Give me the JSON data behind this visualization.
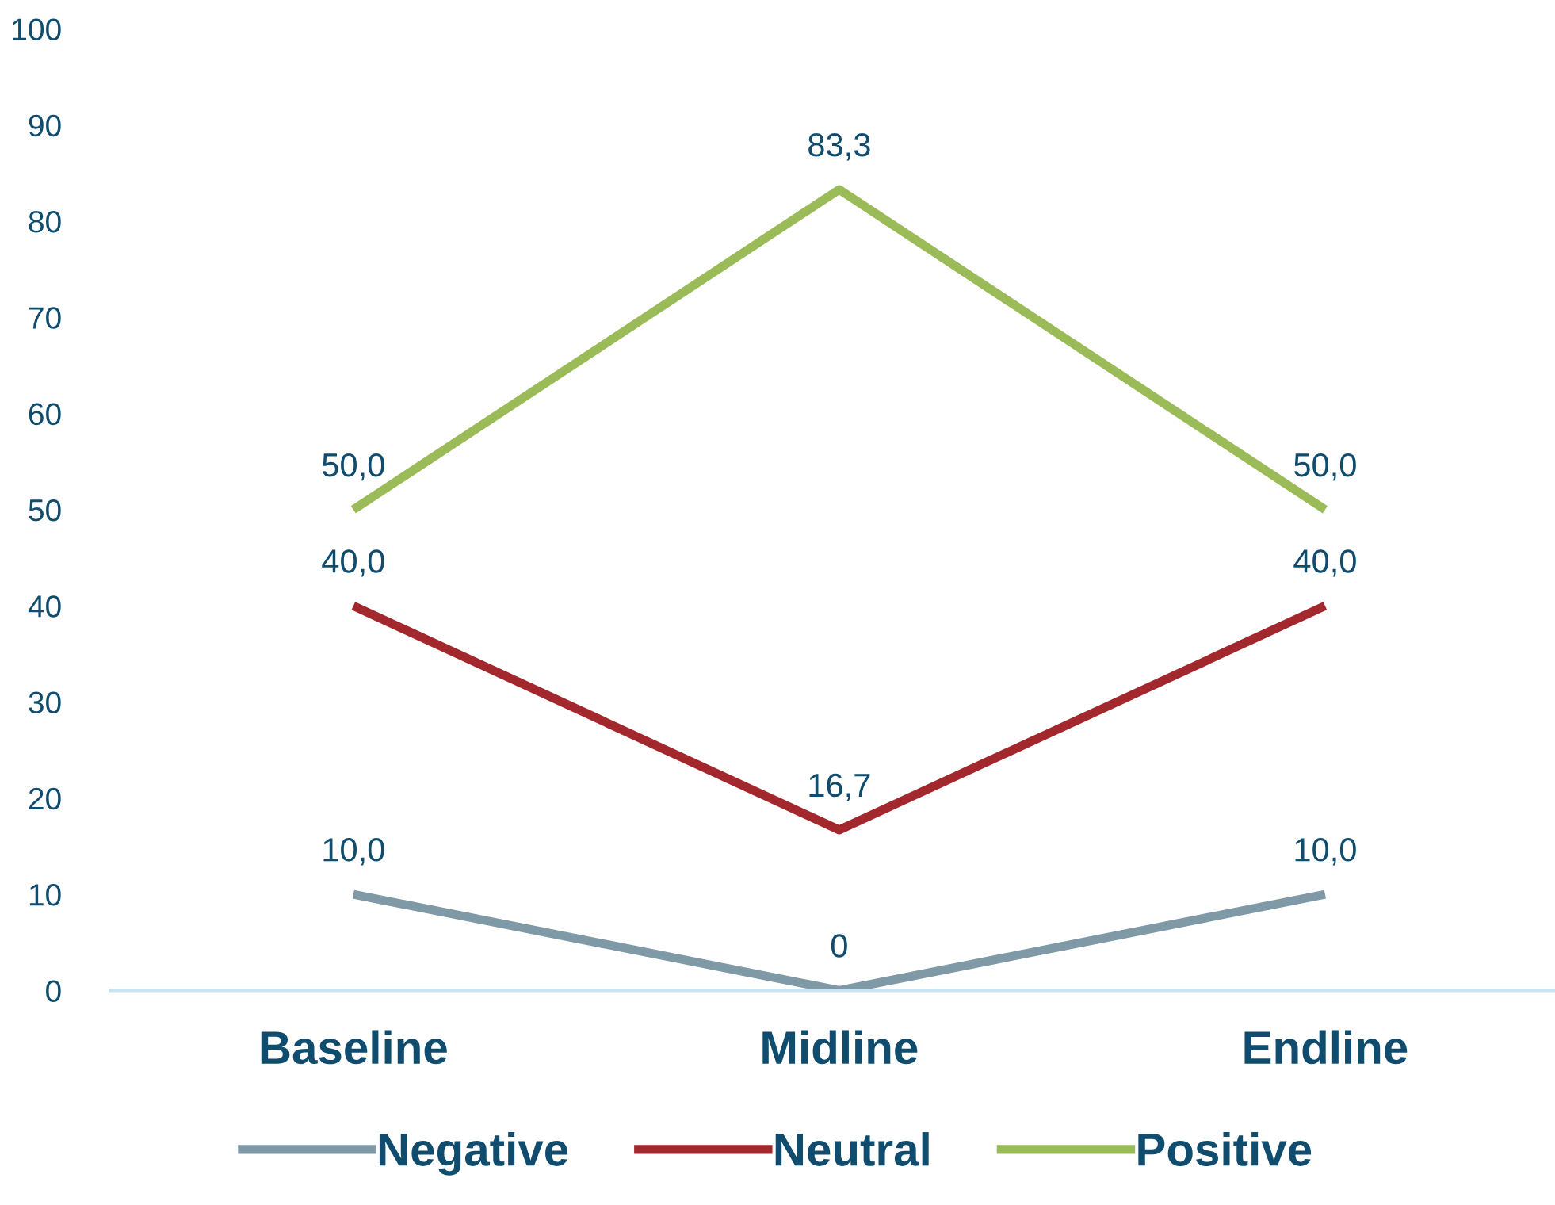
{
  "chart_data": {
    "type": "line",
    "categories": [
      "Baseline",
      "Midline",
      "Endline"
    ],
    "series": [
      {
        "name": "Negative",
        "color": "#7f9aa6",
        "values": [
          10,
          0,
          10
        ],
        "value_labels": [
          "10,0",
          "0",
          "10,0"
        ]
      },
      {
        "name": "Neutral",
        "color": "#a3282e",
        "values": [
          40,
          16.7,
          40
        ],
        "value_labels": [
          "40,0",
          "16,7",
          "40,0"
        ]
      },
      {
        "name": "Positive",
        "color": "#9bbb59",
        "values": [
          50,
          83.3,
          50
        ],
        "value_labels": [
          "50,0",
          "83,3",
          "50,0"
        ]
      }
    ],
    "ylim": [
      0,
      100
    ],
    "yticks": [
      0,
      10,
      20,
      30,
      40,
      50,
      60,
      70,
      80,
      90,
      100
    ],
    "grid": false,
    "legend": "bottom",
    "marker": "none",
    "line_style": "solid"
  }
}
